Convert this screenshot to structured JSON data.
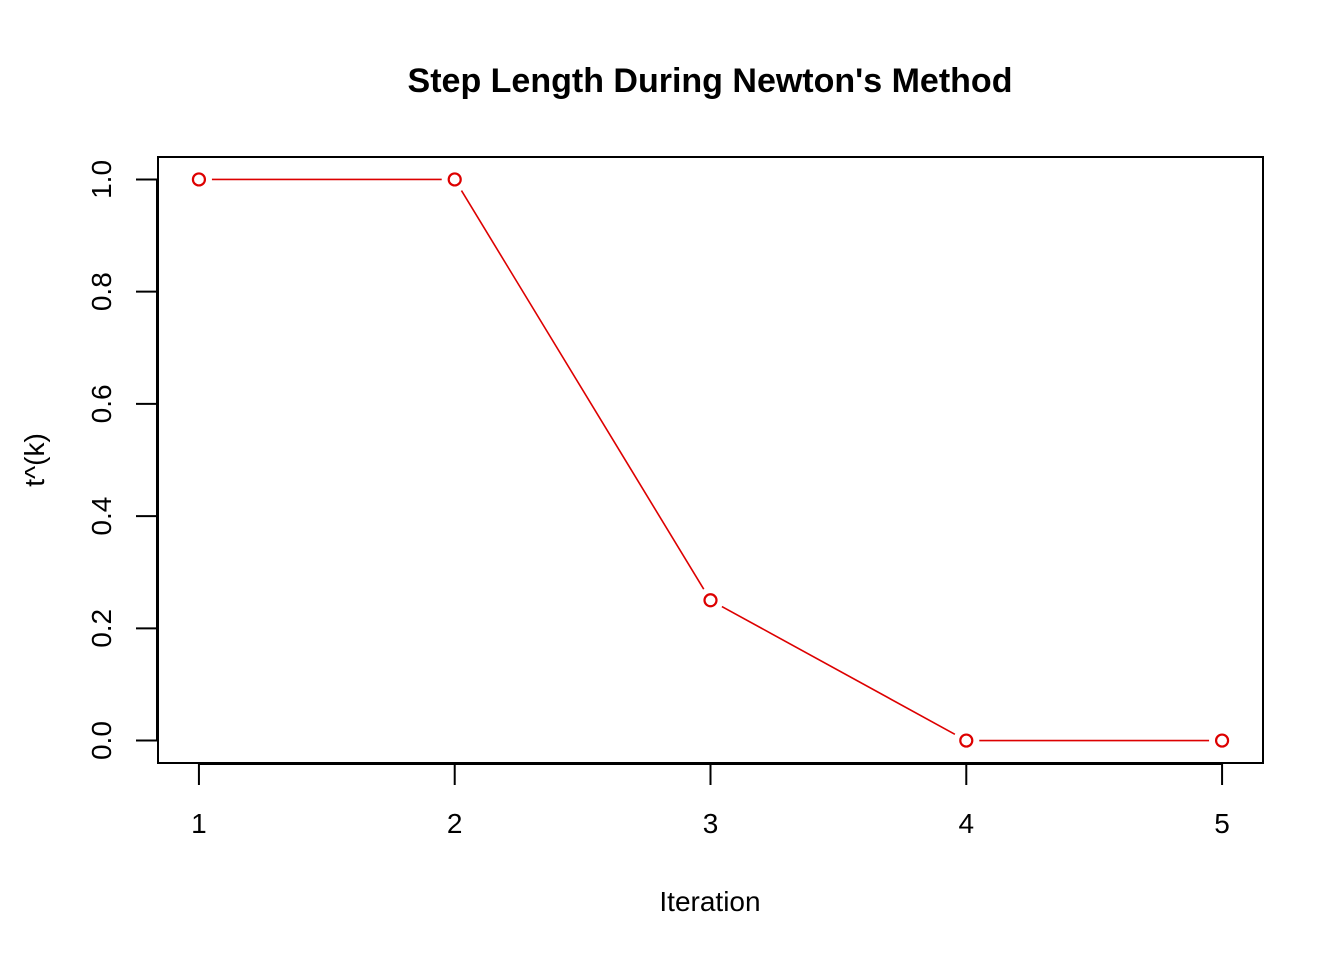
{
  "chart_data": {
    "type": "line",
    "title": "Step Length During Newton's Method",
    "xlabel": "Iteration",
    "ylabel": "t^(k)",
    "x": [
      1,
      2,
      3,
      4,
      5
    ],
    "series": [
      {
        "values": [
          1.0,
          1.0,
          0.25,
          0.0,
          0.0
        ],
        "color": "#dd0000",
        "marker": "open-circle",
        "line": "solid-with-gaps"
      }
    ],
    "xlim": [
      0.84,
      5.16
    ],
    "ylim": [
      -0.04,
      1.04
    ],
    "x_ticks": [
      1,
      2,
      3,
      4,
      5
    ],
    "x_tick_labels": [
      "1",
      "2",
      "3",
      "4",
      "5"
    ],
    "y_ticks": [
      0.0,
      0.2,
      0.4,
      0.6,
      0.8,
      1.0
    ],
    "y_tick_labels": [
      "0.0",
      "0.2",
      "0.4",
      "0.6",
      "0.8",
      "1.0"
    ],
    "grid": false,
    "legend": "none"
  }
}
